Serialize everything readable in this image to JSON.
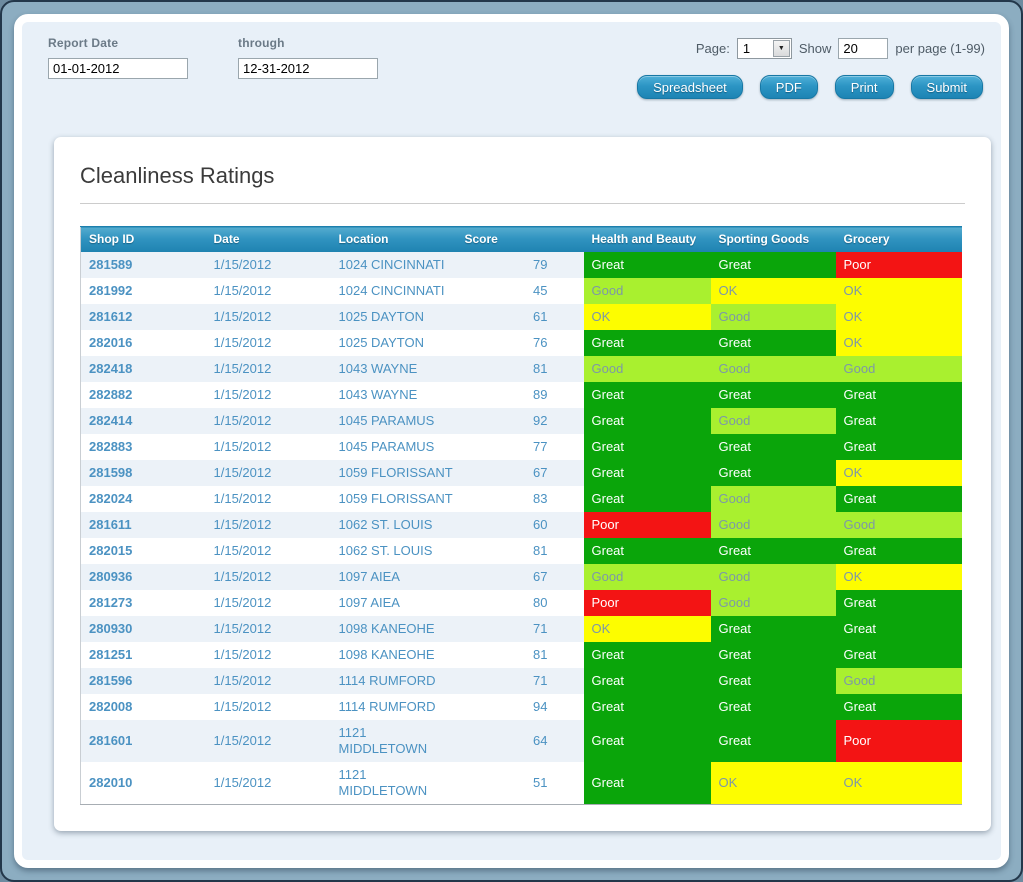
{
  "filters": {
    "report_date_label": "Report Date",
    "through_label": "through",
    "start_date": "01-01-2012",
    "end_date": "12-31-2012",
    "page_label": "Page:",
    "page_value": "1",
    "show_label": "Show",
    "show_value": "20",
    "per_page_label": "per page (1-99)"
  },
  "toolbar": {
    "buttons": [
      {
        "label": "Spreadsheet"
      },
      {
        "label": "PDF"
      },
      {
        "label": "Print"
      },
      {
        "label": "Submit"
      }
    ]
  },
  "report": {
    "title": "Cleanliness Ratings",
    "columns": [
      "Shop ID",
      "Date",
      "Location",
      "Score",
      "Health and Beauty",
      "Sporting Goods",
      "Grocery"
    ],
    "rating_colors": {
      "Great": "#0aa50a",
      "Good": "#a9f02f",
      "OK": "#fdfd00",
      "Poor": "#f31414"
    },
    "rating_text_colors": {
      "Great": "#ffffff",
      "Good": "#7d98a8",
      "OK": "#7d98a8",
      "Poor": "#ffffff"
    },
    "rows": [
      {
        "shop_id": "281589",
        "date": "1/15/2012",
        "location": "1024 CINCINNATI",
        "score": "79",
        "ratings": [
          "Great",
          "Great",
          "Poor"
        ]
      },
      {
        "shop_id": "281992",
        "date": "1/15/2012",
        "location": "1024 CINCINNATI",
        "score": "45",
        "ratings": [
          "Good",
          "OK",
          "OK"
        ]
      },
      {
        "shop_id": "281612",
        "date": "1/15/2012",
        "location": "1025 DAYTON",
        "score": "61",
        "ratings": [
          "OK",
          "Good",
          "OK"
        ]
      },
      {
        "shop_id": "282016",
        "date": "1/15/2012",
        "location": "1025 DAYTON",
        "score": "76",
        "ratings": [
          "Great",
          "Great",
          "OK"
        ]
      },
      {
        "shop_id": "282418",
        "date": "1/15/2012",
        "location": "1043 WAYNE",
        "score": "81",
        "ratings": [
          "Good",
          "Good",
          "Good"
        ]
      },
      {
        "shop_id": "282882",
        "date": "1/15/2012",
        "location": "1043 WAYNE",
        "score": "89",
        "ratings": [
          "Great",
          "Great",
          "Great"
        ]
      },
      {
        "shop_id": "282414",
        "date": "1/15/2012",
        "location": "1045 PARAMUS",
        "score": "92",
        "ratings": [
          "Great",
          "Good",
          "Great"
        ]
      },
      {
        "shop_id": "282883",
        "date": "1/15/2012",
        "location": "1045 PARAMUS",
        "score": "77",
        "ratings": [
          "Great",
          "Great",
          "Great"
        ]
      },
      {
        "shop_id": "281598",
        "date": "1/15/2012",
        "location": "1059 FLORISSANT",
        "score": "67",
        "ratings": [
          "Great",
          "Great",
          "OK"
        ]
      },
      {
        "shop_id": "282024",
        "date": "1/15/2012",
        "location": "1059 FLORISSANT",
        "score": "83",
        "ratings": [
          "Great",
          "Good",
          "Great"
        ]
      },
      {
        "shop_id": "281611",
        "date": "1/15/2012",
        "location": "1062 ST. LOUIS",
        "score": "60",
        "ratings": [
          "Poor",
          "Good",
          "Good"
        ]
      },
      {
        "shop_id": "282015",
        "date": "1/15/2012",
        "location": "1062 ST. LOUIS",
        "score": "81",
        "ratings": [
          "Great",
          "Great",
          "Great"
        ]
      },
      {
        "shop_id": "280936",
        "date": "1/15/2012",
        "location": "1097 AIEA",
        "score": "67",
        "ratings": [
          "Good",
          "Good",
          "OK"
        ]
      },
      {
        "shop_id": "281273",
        "date": "1/15/2012",
        "location": "1097 AIEA",
        "score": "80",
        "ratings": [
          "Poor",
          "Good",
          "Great"
        ]
      },
      {
        "shop_id": "280930",
        "date": "1/15/2012",
        "location": "1098 KANEOHE",
        "score": "71",
        "ratings": [
          "OK",
          "Great",
          "Great"
        ]
      },
      {
        "shop_id": "281251",
        "date": "1/15/2012",
        "location": "1098 KANEOHE",
        "score": "81",
        "ratings": [
          "Great",
          "Great",
          "Great"
        ]
      },
      {
        "shop_id": "281596",
        "date": "1/15/2012",
        "location": "1114 RUMFORD",
        "score": "71",
        "ratings": [
          "Great",
          "Great",
          "Good"
        ]
      },
      {
        "shop_id": "282008",
        "date": "1/15/2012",
        "location": "1114 RUMFORD",
        "score": "94",
        "ratings": [
          "Great",
          "Great",
          "Great"
        ]
      },
      {
        "shop_id": "281601",
        "date": "1/15/2012",
        "location": "1121 MIDDLETOWN",
        "score": "64",
        "ratings": [
          "Great",
          "Great",
          "Poor"
        ]
      },
      {
        "shop_id": "282010",
        "date": "1/15/2012",
        "location": "1121 MIDDLETOWN",
        "score": "51",
        "ratings": [
          "Great",
          "OK",
          "OK"
        ]
      }
    ]
  }
}
